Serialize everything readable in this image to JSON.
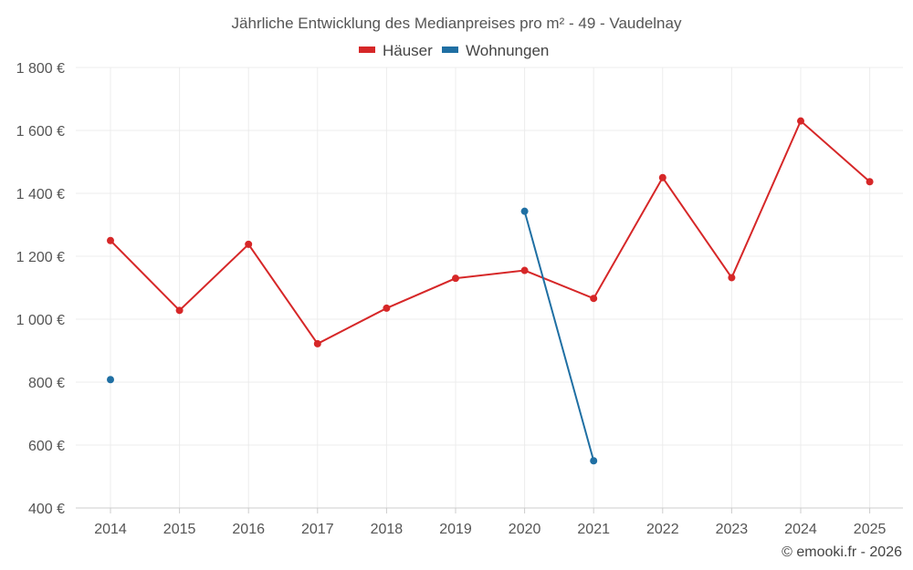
{
  "chart_data": {
    "type": "line",
    "title": "Jährliche Entwicklung des Medianpreises pro m² - 49 - Vaudelnay",
    "categories": [
      "2014",
      "2015",
      "2016",
      "2017",
      "2018",
      "2019",
      "2020",
      "2021",
      "2022",
      "2023",
      "2024",
      "2025"
    ],
    "y_ticks": [
      "400 €",
      "600 €",
      "800 €",
      "1 000 €",
      "1 200 €",
      "1 400 €",
      "1 600 €",
      "1 800 €"
    ],
    "ylim": [
      400,
      1800
    ],
    "grid": true,
    "legend_position": "top-center",
    "series": [
      {
        "name": "Häuser",
        "color": "#d62728",
        "values": [
          1250,
          1028,
          1238,
          922,
          1035,
          1130,
          1155,
          1066,
          1450,
          1132,
          1630,
          1437
        ]
      },
      {
        "name": "Wohnungen",
        "color": "#1f6fa3",
        "values": [
          808,
          null,
          null,
          null,
          null,
          null,
          1343,
          550,
          null,
          null,
          null,
          null
        ]
      }
    ],
    "xlabel": "",
    "ylabel": ""
  },
  "credit": "© emooki.fr - 2026"
}
